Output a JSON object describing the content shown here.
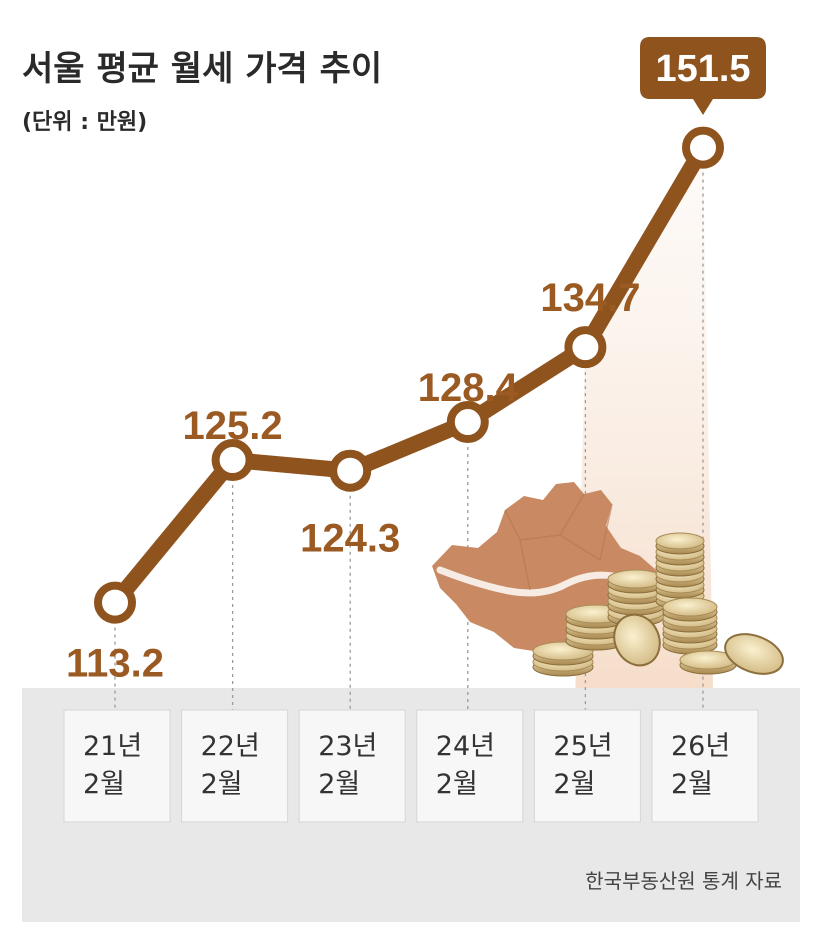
{
  "chart_data": {
    "type": "line",
    "title": "서울 평균 월세 가격 추이",
    "unit_label": "(단위 : 만원)",
    "categories": [
      {
        "year": "21년",
        "month": "2월"
      },
      {
        "year": "22년",
        "month": "2월"
      },
      {
        "year": "23년",
        "month": "2월"
      },
      {
        "year": "24년",
        "month": "2월"
      },
      {
        "year": "25년",
        "month": "2월"
      },
      {
        "year": "26년",
        "month": "2월"
      }
    ],
    "values": [
      113.2,
      125.2,
      124.3,
      128.4,
      134.7,
      151.5
    ],
    "value_labels": [
      "113.2",
      "125.2",
      "124.3",
      "128.4",
      "134.7",
      "151.5"
    ],
    "highlight_index": 5,
    "source": "한국부동산원 통계 자료",
    "colors": {
      "line": "#8f531e",
      "label": "#9a5a22",
      "badge": "#8f531e",
      "panel": "#e8e8e8",
      "map": "#c98a63"
    },
    "decorations": [
      "seoul-map-illustration",
      "coin-stacks-illustration"
    ]
  }
}
